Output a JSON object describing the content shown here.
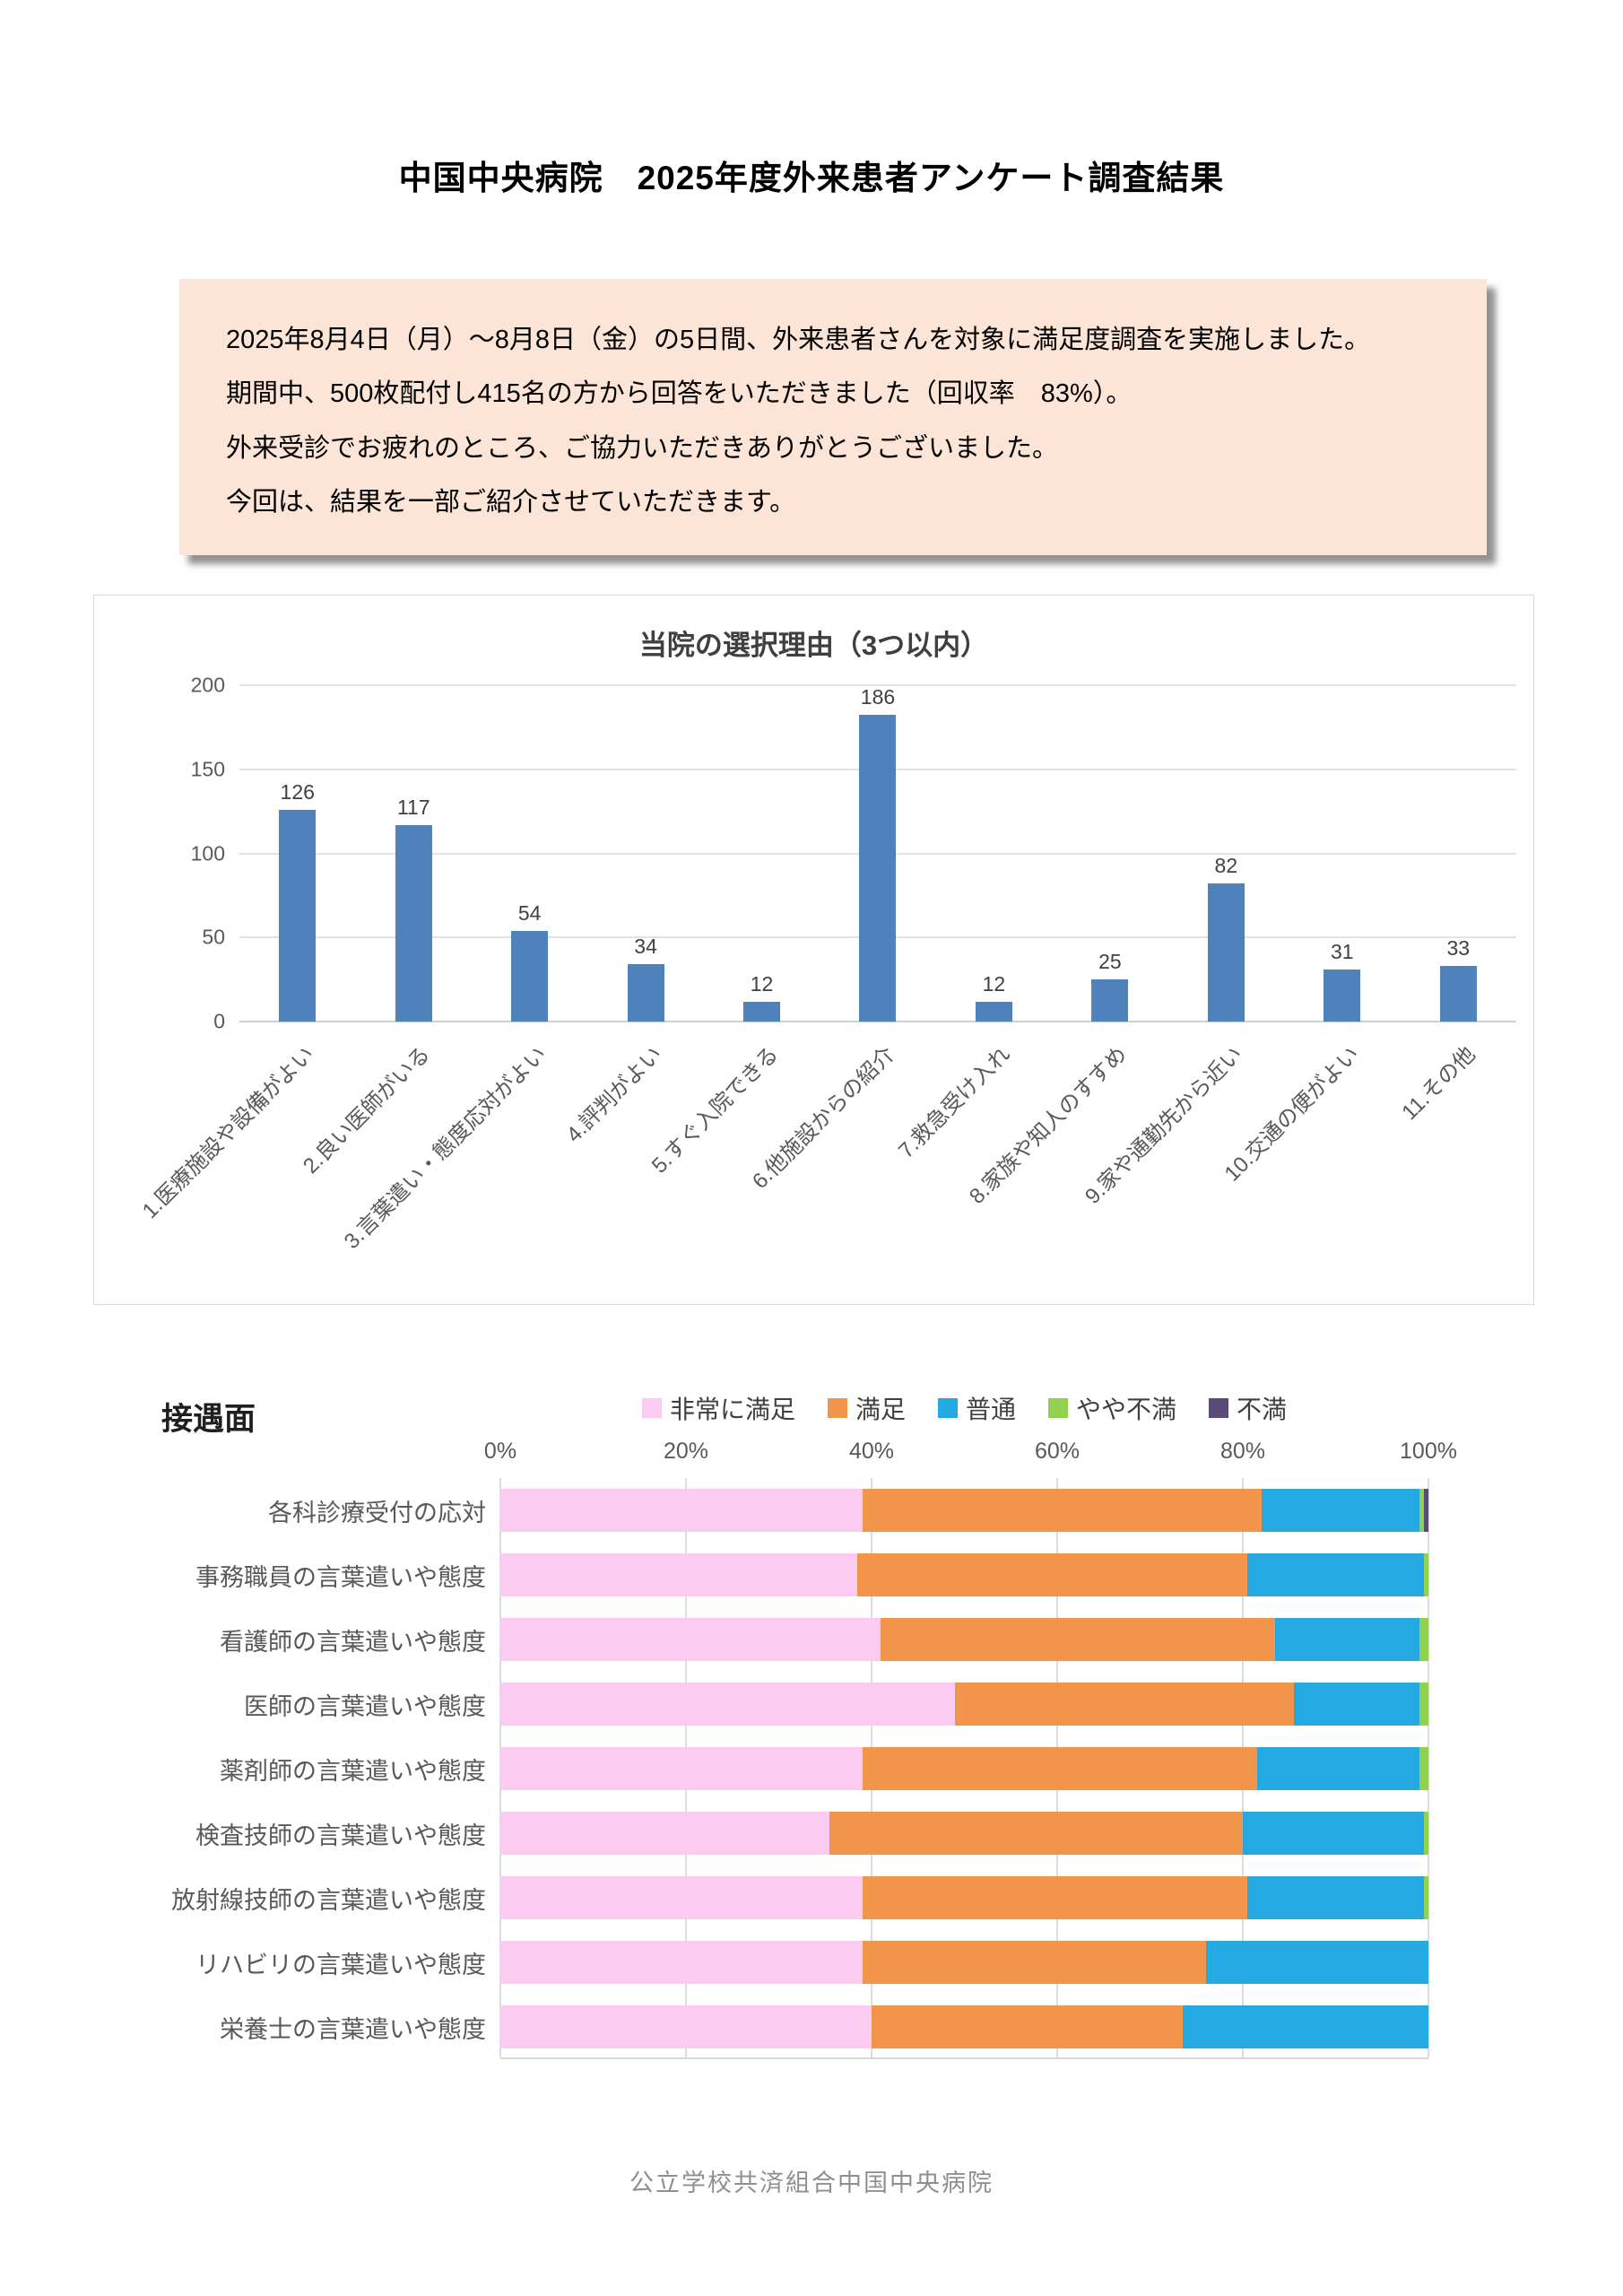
{
  "page": {
    "title": "中国中央病院　2025年度外来患者アンケート調査結果",
    "footer": "公立学校共済組合中国中央病院"
  },
  "intro": {
    "lines": [
      "2025年8月4日（月）～8月8日（金）の5日間、外来患者さんを対象に満足度調査を実施しました。",
      "期間中、500枚配付し415名の方から回答をいただきました（回収率　83%）。",
      "外来受診でお疲れのところ、ご協力いただきありがとうございました。",
      "今回は、結果を一部ご紹介させていただきます。"
    ]
  },
  "chart_data": [
    {
      "type": "bar",
      "title": "当院の選択理由（3つ以内）",
      "categories": [
        "1.医療施設や設備がよい",
        "2.良い医師がいる",
        "3.言葉遣い・態度応対がよい",
        "4.評判がよい",
        "5.すぐ入院できる",
        "6.他施設からの紹介",
        "7.救急受け入れ",
        "8.家族や知人のすすめ",
        "9.家や通勤先から近い",
        "10.交通の便がよい",
        "11.その他"
      ],
      "values": [
        126,
        117,
        54,
        34,
        12,
        186,
        12,
        25,
        82,
        31,
        33
      ],
      "xlabel": "",
      "ylabel": "",
      "ylim": [
        0,
        200
      ],
      "yticks": [
        0,
        50,
        100,
        150,
        200
      ],
      "grid": true,
      "legend_position": "none",
      "bar_color": "#4f81bd"
    },
    {
      "type": "stacked-bar-horizontal",
      "section_title": "接遇面",
      "categories": [
        "各科診療受付の応対",
        "事務職員の言葉遣いや態度",
        "看護師の言葉遣いや態度",
        "医師の言葉遣いや態度",
        "薬剤師の言葉遣いや態度",
        "検査技師の言葉遣いや態度",
        "放射線技師の言葉遣いや態度",
        "リハビリの言葉遣いや態度",
        "栄養士の言葉遣いや態度"
      ],
      "series": [
        {
          "name": "非常に満足",
          "color": "#fbcbf2",
          "values": [
            39,
            38.5,
            41,
            49,
            39,
            35.5,
            39,
            39,
            40
          ]
        },
        {
          "name": "満足",
          "color": "#f0954a",
          "values": [
            43,
            42,
            42.5,
            36.5,
            42.5,
            44.5,
            41.5,
            37,
            33.5
          ]
        },
        {
          "name": "普通",
          "color": "#24a9e1",
          "values": [
            17,
            19,
            15.5,
            13.5,
            17.5,
            19.5,
            19,
            24,
            26.5
          ]
        },
        {
          "name": "やや不満",
          "color": "#92d050",
          "values": [
            0.5,
            0.5,
            1,
            1,
            1,
            0.5,
            0.5,
            0,
            0
          ]
        },
        {
          "name": "不満",
          "color": "#5a4a78",
          "values": [
            0.5,
            0,
            0,
            0,
            0,
            0,
            0,
            0,
            0
          ]
        }
      ],
      "xticks": [
        "0%",
        "20%",
        "40%",
        "60%",
        "80%",
        "100%"
      ],
      "xlim": [
        0,
        100
      ],
      "grid": true,
      "legend_position": "top"
    }
  ]
}
